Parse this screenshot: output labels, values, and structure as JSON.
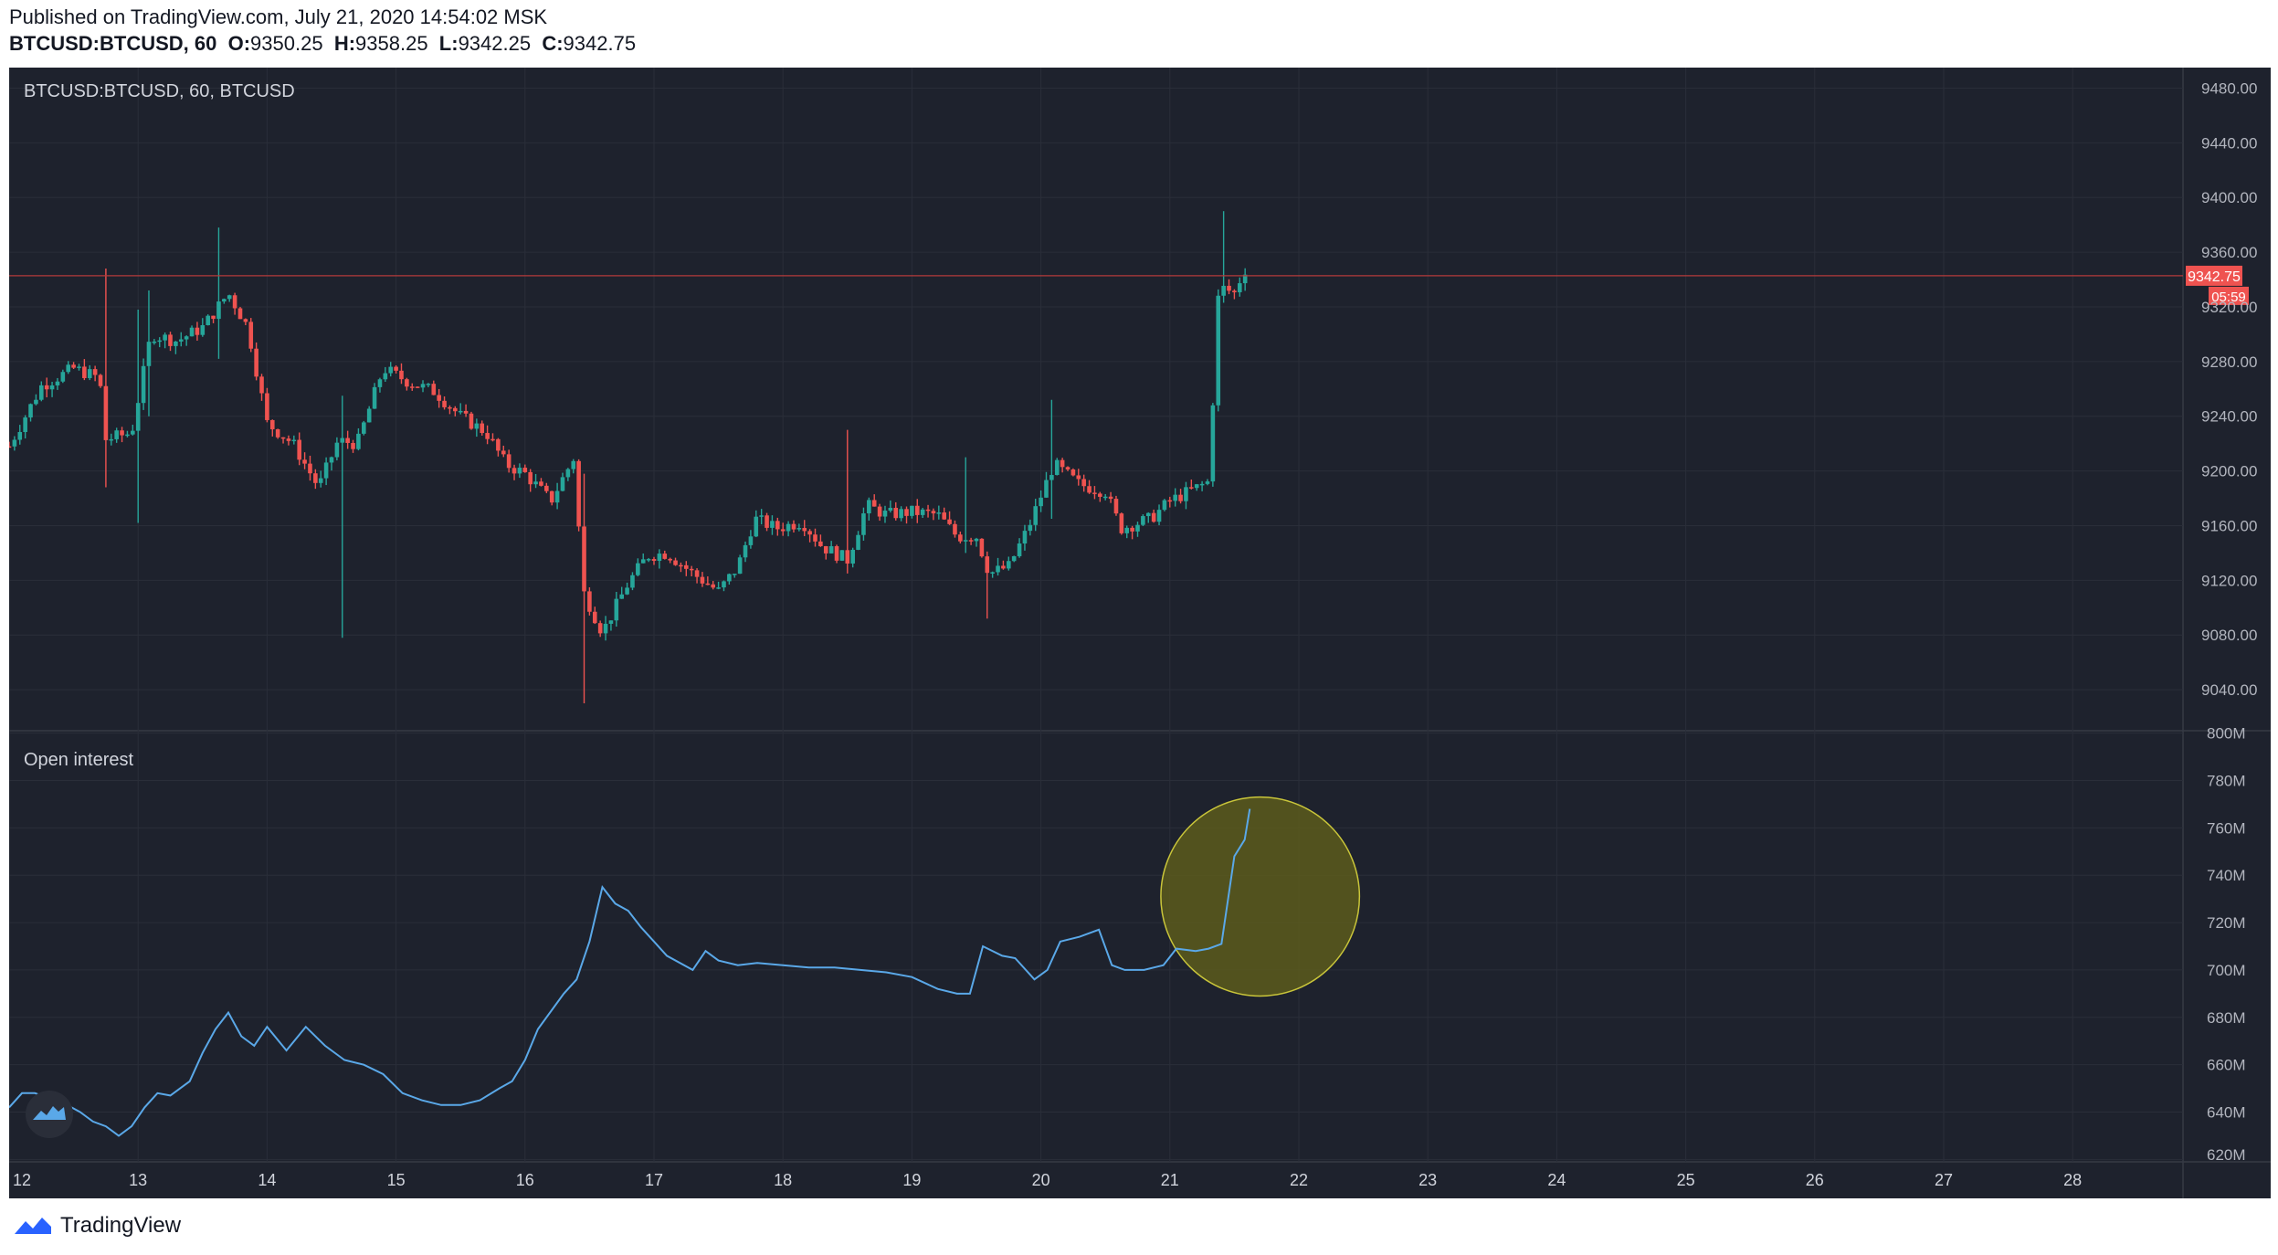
{
  "header": {
    "published": "Published on TradingView.com, July 21, 2020 14:54:02 MSK",
    "symbol_line": "BTCUSD:BTCUSD, 60",
    "o_label": "O:",
    "o_value": "9350.25",
    "h_label": "H:",
    "h_value": "9358.25",
    "l_label": "L:",
    "l_value": "9342.25",
    "c_label": "C:",
    "c_value": "9342.75"
  },
  "footer": {
    "brand": "TradingView"
  },
  "colors": {
    "background": "#1e222d",
    "up": "#26a69a",
    "down": "#ef5350",
    "oi_line": "#5aa8e8",
    "highlight_fill": "#5c5a1c",
    "highlight_stroke": "#c9c53a",
    "price_line": "#b33b3b"
  },
  "chart_data": [
    {
      "type": "candlestick",
      "title": "BTCUSD:BTCUSD, 60, BTCUSD",
      "x_axis_labels": [
        "12",
        "13",
        "14",
        "15",
        "16",
        "17",
        "18",
        "19",
        "20",
        "21",
        "22",
        "23",
        "24",
        "25",
        "26",
        "27",
        "28"
      ],
      "y_axis_labels": [
        "9480.00",
        "9440.00",
        "9400.00",
        "9360.00",
        "9320.00",
        "9280.00",
        "9240.00",
        "9200.00",
        "9160.00",
        "9120.00",
        "9080.00",
        "9040.00"
      ],
      "ylim": [
        9010,
        9495
      ],
      "x_range_days": [
        12,
        29
      ],
      "last_price": {
        "label": "9342.75",
        "value": 9342.75,
        "countdown": "05:59"
      },
      "close_path": [
        [
          12.0,
          9218
        ],
        [
          12.25,
          9262
        ],
        [
          12.5,
          9275
        ],
        [
          12.7,
          9268
        ],
        [
          12.75,
          9223
        ],
        [
          12.95,
          9228
        ],
        [
          13.1,
          9300
        ],
        [
          13.3,
          9295
        ],
        [
          13.5,
          9305
        ],
        [
          13.7,
          9330
        ],
        [
          13.85,
          9305
        ],
        [
          14.0,
          9235
        ],
        [
          14.2,
          9220
        ],
        [
          14.4,
          9188
        ],
        [
          14.55,
          9222
        ],
        [
          14.7,
          9220
        ],
        [
          14.9,
          9275
        ],
        [
          15.1,
          9265
        ],
        [
          15.3,
          9258
        ],
        [
          15.5,
          9240
        ],
        [
          15.7,
          9228
        ],
        [
          15.85,
          9205
        ],
        [
          16.0,
          9198
        ],
        [
          16.2,
          9178
        ],
        [
          16.38,
          9210
        ],
        [
          16.45,
          9112
        ],
        [
          16.6,
          9082
        ],
        [
          16.8,
          9118
        ],
        [
          16.95,
          9138
        ],
        [
          17.1,
          9140
        ],
        [
          17.3,
          9125
        ],
        [
          17.5,
          9112
        ],
        [
          17.65,
          9130
        ],
        [
          17.78,
          9165
        ],
        [
          17.95,
          9158
        ],
        [
          18.15,
          9163
        ],
        [
          18.3,
          9145
        ],
        [
          18.5,
          9135
        ],
        [
          18.65,
          9175
        ],
        [
          18.8,
          9168
        ],
        [
          19.0,
          9170
        ],
        [
          19.2,
          9168
        ],
        [
          19.35,
          9152
        ],
        [
          19.5,
          9152
        ],
        [
          19.6,
          9125
        ],
        [
          19.75,
          9130
        ],
        [
          19.9,
          9158
        ],
        [
          20.1,
          9205
        ],
        [
          20.3,
          9190
        ],
        [
          20.5,
          9185
        ],
        [
          20.62,
          9158
        ],
        [
          20.85,
          9165
        ],
        [
          21.0,
          9178
        ],
        [
          21.3,
          9192
        ],
        [
          21.38,
          9335
        ],
        [
          21.5,
          9330
        ],
        [
          21.58,
          9348
        ],
        [
          21.62,
          9342.75
        ]
      ],
      "notable_wicks": [
        {
          "x": 12.75,
          "high": 9348,
          "low": 9188
        },
        {
          "x": 12.98,
          "high": 9318,
          "low": 9162
        },
        {
          "x": 13.08,
          "high": 9332,
          "low": 9240
        },
        {
          "x": 13.62,
          "high": 9378,
          "low": 9282
        },
        {
          "x": 14.58,
          "high": 9255,
          "low": 9078
        },
        {
          "x": 16.45,
          "high": 9198,
          "low": 9030
        },
        {
          "x": 18.5,
          "high": 9230,
          "low": 9125
        },
        {
          "x": 19.4,
          "high": 9210,
          "low": 9140
        },
        {
          "x": 19.6,
          "high": 9132,
          "low": 9092
        },
        {
          "x": 20.08,
          "high": 9252,
          "low": 9165
        },
        {
          "x": 21.4,
          "high": 9390,
          "low": 9330
        }
      ]
    },
    {
      "type": "line",
      "title": "Open interest",
      "x_axis_labels": [
        "12",
        "13",
        "14",
        "15",
        "16",
        "17",
        "18",
        "19",
        "20",
        "21",
        "22",
        "23",
        "24",
        "25",
        "26",
        "27",
        "28"
      ],
      "y_axis_labels": [
        "800M",
        "780M",
        "760M",
        "740M",
        "720M",
        "700M",
        "680M",
        "660M",
        "640M",
        "620M"
      ],
      "ylim": [
        619,
        801
      ],
      "unit": "M",
      "x": [
        12.0,
        12.1,
        12.2,
        12.3,
        12.45,
        12.55,
        12.65,
        12.75,
        12.85,
        12.95,
        13.05,
        13.15,
        13.25,
        13.4,
        13.5,
        13.6,
        13.7,
        13.8,
        13.9,
        14.0,
        14.15,
        14.3,
        14.45,
        14.6,
        14.75,
        14.9,
        15.05,
        15.2,
        15.35,
        15.5,
        15.65,
        15.8,
        15.9,
        16.0,
        16.1,
        16.3,
        16.4,
        16.5,
        16.6,
        16.7,
        16.8,
        16.9,
        17.0,
        17.1,
        17.3,
        17.4,
        17.5,
        17.65,
        17.8,
        18.0,
        18.2,
        18.4,
        18.6,
        18.8,
        19.0,
        19.2,
        19.35,
        19.45,
        19.55,
        19.7,
        19.8,
        19.95,
        20.05,
        20.15,
        20.3,
        20.45,
        20.55,
        20.65,
        20.8,
        20.95,
        21.05,
        21.2,
        21.3,
        21.4,
        21.5,
        21.58,
        21.62
      ],
      "y": [
        642,
        648,
        648,
        646,
        643,
        640,
        636,
        634,
        630,
        634,
        642,
        648,
        647,
        653,
        665,
        675,
        682,
        672,
        668,
        676,
        666,
        676,
        668,
        662,
        660,
        656,
        648,
        645,
        643,
        643,
        645,
        650,
        653,
        662,
        675,
        690,
        696,
        712,
        735,
        728,
        725,
        718,
        712,
        706,
        700,
        708,
        704,
        702,
        703,
        702,
        701,
        701,
        700,
        699,
        697,
        692,
        690,
        690,
        710,
        706,
        705,
        696,
        700,
        712,
        714,
        717,
        702,
        700,
        700,
        702,
        709,
        708,
        709,
        711,
        748,
        755,
        768
      ]
    }
  ],
  "highlight": {
    "center_x": 21.7,
    "center_y": 731,
    "radius_x_days": 0.77,
    "radius_y": 42
  }
}
